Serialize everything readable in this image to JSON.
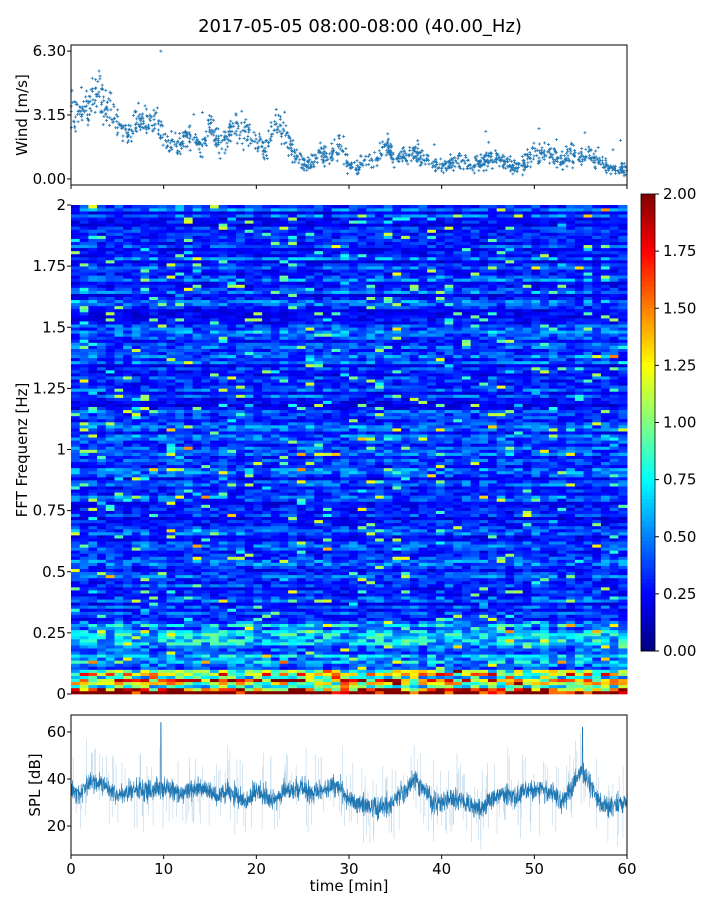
{
  "title": "2017-05-05 08:00-08:00 (40.00_Hz)",
  "chart_data": [
    {
      "type": "scatter",
      "name": "wind",
      "ylabel": "Wind [m/s]",
      "xlabel": "",
      "xlim": [
        0,
        60
      ],
      "ylim": [
        -0.3,
        6.6
      ],
      "yticks": [
        "0.00",
        "3.15",
        "6.30"
      ],
      "ytick_values": [
        0,
        3.15,
        6.3
      ],
      "xticks": [
        0,
        10,
        20,
        30,
        40,
        50,
        60
      ],
      "color": "#1f77b4",
      "marker": "+",
      "minute_mean_values": [
        2.8,
        3.3,
        3.6,
        4.2,
        3.2,
        2.8,
        2.2,
        2.9,
        2.6,
        3.0,
        2.0,
        1.7,
        1.8,
        2.4,
        1.6,
        2.6,
        1.8,
        2.2,
        2.5,
        2.4,
        1.8,
        1.5,
        2.6,
        2.5,
        1.2,
        0.7,
        0.8,
        1.3,
        1.0,
        1.8,
        0.6,
        0.5,
        1.0,
        0.8,
        1.8,
        0.9,
        1.2,
        1.3,
        1.0,
        0.8,
        0.6,
        0.7,
        0.9,
        0.7,
        0.8,
        1.0,
        1.0,
        0.8,
        0.6,
        0.8,
        1.4,
        1.3,
        1.2,
        1.0,
        1.3,
        1.1,
        1.2,
        0.8,
        0.6,
        0.5,
        0.4
      ],
      "max_value": 6.3
    },
    {
      "type": "heatmap",
      "name": "fft-spectrogram",
      "ylabel": "FFT Frequenz [Hz]",
      "xlim": [
        0,
        60
      ],
      "ylim": [
        0,
        2
      ],
      "yticks": [
        "0",
        "0.25",
        "0.5",
        "0.75",
        "1",
        "1.25",
        "1.5",
        "1.75",
        "2"
      ],
      "ytick_values": [
        0,
        0.25,
        0.5,
        0.75,
        1,
        1.25,
        1.5,
        1.75,
        2
      ],
      "colormap": "jet",
      "clim": [
        0,
        2
      ],
      "colorbar_ticks": [
        "0.00",
        "0.25",
        "0.50",
        "0.75",
        "1.00",
        "1.25",
        "1.50",
        "1.75",
        "2.00"
      ],
      "colorbar_tick_values": [
        0,
        0.25,
        0.5,
        0.75,
        1,
        1.25,
        1.5,
        1.75,
        2
      ],
      "band_mean_levels": [
        {
          "f_max": 0.03,
          "level": 1.8
        },
        {
          "f_max": 0.1,
          "level": 1.0
        },
        {
          "f_max": 0.3,
          "level": 0.5
        },
        {
          "f_max": 2.0,
          "level": 0.33
        }
      ]
    },
    {
      "type": "line",
      "name": "spl",
      "ylabel": "SPL [dB]",
      "xlabel": "time [min]",
      "xlim": [
        0,
        60
      ],
      "ylim": [
        7.7,
        67.2
      ],
      "yticks": [
        "20",
        "40",
        "60"
      ],
      "ytick_values": [
        20,
        40,
        60
      ],
      "xticks": [
        "0",
        "10",
        "20",
        "30",
        "40",
        "50",
        "60"
      ],
      "xtick_values": [
        0,
        10,
        20,
        30,
        40,
        50,
        60
      ],
      "color": "#1f77b4",
      "minute_mean_values": [
        35,
        34,
        38,
        39,
        36,
        33,
        34,
        36,
        35,
        36,
        37,
        35,
        33,
        35,
        36,
        35,
        33,
        35,
        33,
        30,
        35,
        33,
        31,
        35,
        35,
        36,
        34,
        35,
        37,
        36,
        31,
        30,
        29,
        27,
        29,
        31,
        34,
        40,
        37,
        30,
        29,
        32,
        31,
        29,
        27,
        30,
        33,
        34,
        32,
        35,
        36,
        35,
        33,
        30,
        36,
        44,
        38,
        30,
        28,
        29,
        30
      ],
      "peaks": [
        {
          "t": 9.7,
          "value": 64
        },
        {
          "t": 55.2,
          "value": 62
        }
      ]
    }
  ]
}
